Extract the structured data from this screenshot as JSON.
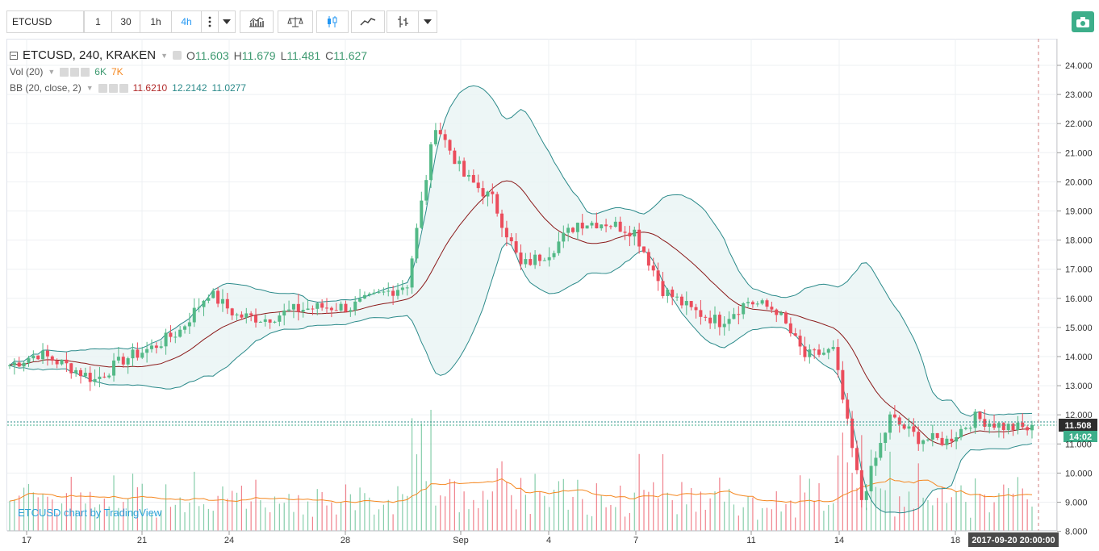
{
  "toolbar": {
    "symbol": "ETCUSD",
    "intervals": [
      "1",
      "30",
      "1h",
      "4h"
    ],
    "active_interval": "4h"
  },
  "legend": {
    "title": "ETCUSD, 240, KRAKEN",
    "ohlc": {
      "o_label": "O",
      "o": "11.603",
      "h_label": "H",
      "h": "11.679",
      "l_label": "L",
      "l": "11.481",
      "c_label": "C",
      "c": "11.627"
    },
    "vol_label": "Vol (20)",
    "vol_values": [
      "6K",
      "7K"
    ],
    "bb_label": "BB (20, close, 2)",
    "bb_values": [
      "11.6210",
      "12.2142",
      "11.0277"
    ]
  },
  "watermark": "ETCUSD chart by TradingView",
  "colors": {
    "up": "#53b987",
    "down": "#eb4d5c",
    "bb_band": "#2b8a8a",
    "bb_basis": "#8b1a1a",
    "bb_fill": "#e8f4f4",
    "vol_ma": "#f5871f",
    "accent": "#2196f3",
    "camera": "#3dae8a"
  },
  "chart_data": {
    "type": "candlestick",
    "title": "ETCUSD, 240, KRAKEN",
    "ylim": [
      7.9,
      24.4
    ],
    "y_ticks": [
      "24.000",
      "23.000",
      "22.000",
      "21.000",
      "20.000",
      "19.000",
      "18.000",
      "17.000",
      "16.000",
      "15.000",
      "14.000",
      "13.000",
      "12.000",
      "11.000",
      "10.000",
      "9.000",
      "8.000"
    ],
    "x_ticks": [
      "17",
      "21",
      "24",
      "28",
      "Sep",
      "4",
      "7",
      "11",
      "14",
      "18"
    ],
    "last_price_label": "11.508",
    "countdown_label": "14:02",
    "crosshair_time_label": "2017-09-20 20:00:00",
    "price_keypoints": [
      {
        "day": 0,
        "close": 13.7
      },
      {
        "day": 1,
        "close": 14.1
      },
      {
        "day": 2,
        "close": 13.7
      },
      {
        "day": 3,
        "close": 13.2
      },
      {
        "day": 4,
        "close": 13.9
      },
      {
        "day": 5,
        "close": 14.3
      },
      {
        "day": 6,
        "close": 14.9
      },
      {
        "day": 7,
        "close": 16.2
      },
      {
        "day": 8,
        "close": 15.4
      },
      {
        "day": 9,
        "close": 15.3
      },
      {
        "day": 10,
        "close": 15.6
      },
      {
        "day": 11,
        "close": 15.7
      },
      {
        "day": 12,
        "close": 15.7
      },
      {
        "day": 13,
        "close": 16.1
      },
      {
        "day": 14,
        "close": 16.5
      },
      {
        "day": 15,
        "close": 22.0
      },
      {
        "day": 16,
        "close": 20.2
      },
      {
        "day": 17,
        "close": 19.4
      },
      {
        "day": 18,
        "close": 17.1
      },
      {
        "day": 19,
        "close": 17.6
      },
      {
        "day": 20,
        "close": 18.6
      },
      {
        "day": 21,
        "close": 18.6
      },
      {
        "day": 22,
        "close": 18.3
      },
      {
        "day": 23,
        "close": 16.3
      },
      {
        "day": 24,
        "close": 15.6
      },
      {
        "day": 25,
        "close": 15.2
      },
      {
        "day": 26,
        "close": 15.9
      },
      {
        "day": 27,
        "close": 15.6
      },
      {
        "day": 28,
        "close": 14.0
      },
      {
        "day": 29,
        "close": 14.2
      },
      {
        "day": 30,
        "close": 9.1
      },
      {
        "day": 31,
        "close": 11.9
      },
      {
        "day": 32,
        "close": 11.2
      },
      {
        "day": 33,
        "close": 11.1
      },
      {
        "day": 34,
        "close": 11.9
      },
      {
        "day": 35,
        "close": 11.6
      },
      {
        "day": 36,
        "close": 11.5
      }
    ]
  }
}
